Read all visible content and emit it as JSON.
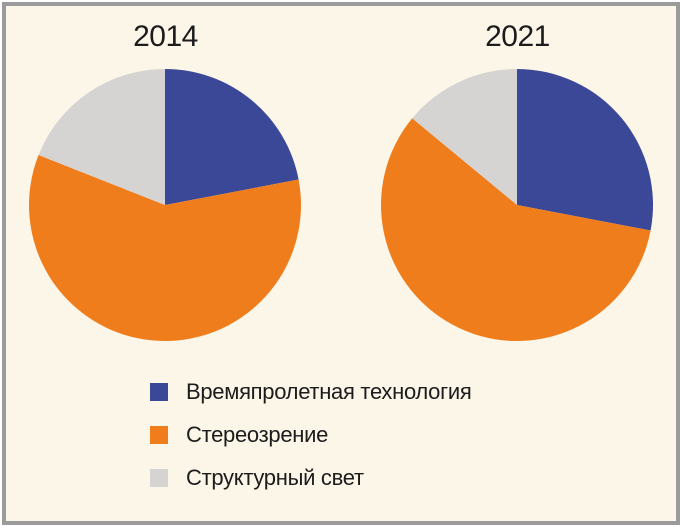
{
  "panel": {
    "background": "#FBF6E8",
    "border_color": "#9B9B9B"
  },
  "chart_data": [
    {
      "type": "pie",
      "title": "2014",
      "start_angle_deg": 0,
      "direction": "clockwise",
      "slices": [
        {
          "label": "Времяпролетная технология",
          "value": 22,
          "color": "#3B4897"
        },
        {
          "label": "Стереозрение",
          "value": 59,
          "color": "#F07D1C"
        },
        {
          "label": "Структурный свет",
          "value": 19,
          "color": "#D5D4D2"
        }
      ]
    },
    {
      "type": "pie",
      "title": "2021",
      "start_angle_deg": 0,
      "direction": "clockwise",
      "slices": [
        {
          "label": "Времяпролетная технология",
          "value": 28,
          "color": "#3B4897"
        },
        {
          "label": "Стереозрение",
          "value": 58,
          "color": "#F07D1C"
        },
        {
          "label": "Структурный свет",
          "value": 14,
          "color": "#D5D4D2"
        }
      ]
    }
  ],
  "legend": {
    "items": [
      {
        "label": "Времяпролетная технология",
        "color": "#3B4897"
      },
      {
        "label": "Стереозрение",
        "color": "#F07D1C"
      },
      {
        "label": "Структурный свет",
        "color": "#D5D4D2"
      }
    ]
  }
}
